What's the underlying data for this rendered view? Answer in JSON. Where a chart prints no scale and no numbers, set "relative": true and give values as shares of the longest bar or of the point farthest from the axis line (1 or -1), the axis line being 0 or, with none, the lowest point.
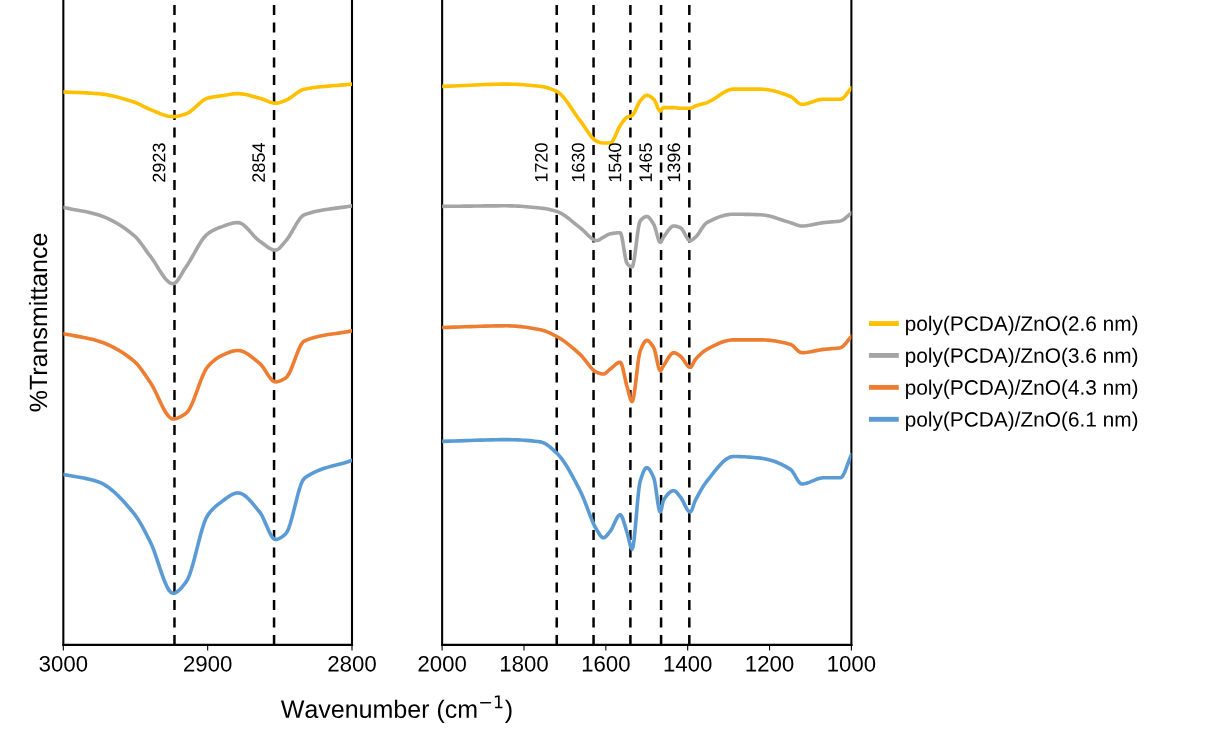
{
  "chart_data": [
    {
      "type": "line",
      "relative": true,
      "ylabel": "%Transmittance",
      "xlabel": "Wavenumber (cm$^{−1}$)",
      "xlim": [
        3000,
        2800
      ],
      "xticks": [
        3000,
        2900,
        2800
      ],
      "line_style": "solid",
      "marker": "none",
      "grid": false,
      "legend": false,
      "x": [
        3000,
        2976,
        2951,
        2940,
        2924,
        2915,
        2900,
        2891,
        2879,
        2864,
        2853,
        2846,
        2833,
        2800
      ],
      "series": [
        {
          "color": "#ffc000",
          "values": [
            0.986,
            0.983,
            0.968,
            0.955,
            0.942,
            0.947,
            0.975,
            0.979,
            0.983,
            0.975,
            0.966,
            0.971,
            0.991,
            1.0
          ]
        },
        {
          "color": "#a5a5a5",
          "values": [
            0.78,
            0.767,
            0.73,
            0.694,
            0.644,
            0.674,
            0.733,
            0.745,
            0.753,
            0.72,
            0.704,
            0.72,
            0.767,
            0.783
          ]
        },
        {
          "color": "#ed7d31",
          "values": [
            0.555,
            0.542,
            0.506,
            0.469,
            0.403,
            0.413,
            0.496,
            0.515,
            0.525,
            0.502,
            0.469,
            0.476,
            0.542,
            0.56
          ]
        },
        {
          "color": "#5b9bd5",
          "values": [
            0.304,
            0.291,
            0.234,
            0.185,
            0.092,
            0.112,
            0.231,
            0.254,
            0.271,
            0.237,
            0.188,
            0.198,
            0.297,
            0.329
          ]
        }
      ],
      "ref_lines": [
        {
          "axis": "x",
          "value": 2923,
          "label": "2923",
          "line_style": "dashed",
          "color": "#000000"
        },
        {
          "axis": "x",
          "value": 2854,
          "label": "2854",
          "line_style": "dashed",
          "color": "#000000"
        }
      ]
    },
    {
      "type": "line",
      "relative": true,
      "xlim": [
        2000,
        1000
      ],
      "xticks": [
        2000,
        1800,
        1600,
        1400,
        1200,
        1000
      ],
      "line_style": "solid",
      "marker": "none",
      "grid": false,
      "legend": "right",
      "x": [
        1997,
        1842,
        1760,
        1720,
        1663,
        1622,
        1606,
        1589,
        1565,
        1548,
        1536,
        1516,
        1500,
        1483,
        1467,
        1459,
        1434,
        1418,
        1394,
        1381,
        1353,
        1288,
        1222,
        1149,
        1121,
        1068,
        1027,
        1000
      ],
      "series": [
        {
          "name": "poly(PCDA)/ZnO(2.6 nm)",
          "color": "#ffc000",
          "values": [
            0.996,
            1.0,
            0.996,
            0.987,
            0.935,
            0.898,
            0.895,
            0.895,
            0.926,
            0.941,
            0.944,
            0.97,
            0.98,
            0.973,
            0.952,
            0.958,
            0.958,
            0.957,
            0.957,
            0.961,
            0.967,
            0.991,
            0.991,
            0.978,
            0.964,
            0.973,
            0.973,
            0.993
          ]
        },
        {
          "name": "poly(PCDA)/ZnO(3.6 nm)",
          "color": "#a5a5a5",
          "values": [
            0.782,
            0.783,
            0.779,
            0.773,
            0.744,
            0.721,
            0.727,
            0.733,
            0.735,
            0.68,
            0.674,
            0.756,
            0.764,
            0.75,
            0.718,
            0.727,
            0.747,
            0.744,
            0.721,
            0.727,
            0.753,
            0.768,
            0.767,
            0.753,
            0.747,
            0.753,
            0.756,
            0.77
          ]
        },
        {
          "name": "poly(PCDA)/ZnO(4.3 nm)",
          "color": "#ed7d31",
          "values": [
            0.566,
            0.569,
            0.562,
            0.55,
            0.518,
            0.486,
            0.483,
            0.492,
            0.504,
            0.46,
            0.434,
            0.524,
            0.543,
            0.53,
            0.489,
            0.498,
            0.521,
            0.515,
            0.495,
            0.509,
            0.527,
            0.544,
            0.544,
            0.536,
            0.521,
            0.527,
            0.53,
            0.55
          ]
        },
        {
          "name": "poly(PCDA)/ZnO(6.1 nm)",
          "color": "#5b9bd5",
          "values": [
            0.363,
            0.366,
            0.362,
            0.342,
            0.275,
            0.205,
            0.191,
            0.203,
            0.232,
            0.2,
            0.171,
            0.292,
            0.316,
            0.298,
            0.237,
            0.258,
            0.275,
            0.264,
            0.237,
            0.258,
            0.292,
            0.336,
            0.333,
            0.313,
            0.287,
            0.298,
            0.298,
            0.339
          ]
        }
      ],
      "ref_lines": [
        {
          "axis": "x",
          "value": 1720,
          "label": "1720",
          "line_style": "dashed",
          "color": "#000000"
        },
        {
          "axis": "x",
          "value": 1630,
          "label": "1630",
          "line_style": "dashed",
          "color": "#000000"
        },
        {
          "axis": "x",
          "value": 1540,
          "label": "1540",
          "line_style": "dashed",
          "color": "#000000"
        },
        {
          "axis": "x",
          "value": 1465,
          "label": "1465",
          "line_style": "dashed",
          "color": "#000000"
        },
        {
          "axis": "x",
          "value": 1396,
          "label": "1396",
          "line_style": "dashed",
          "color": "#000000"
        }
      ]
    }
  ]
}
